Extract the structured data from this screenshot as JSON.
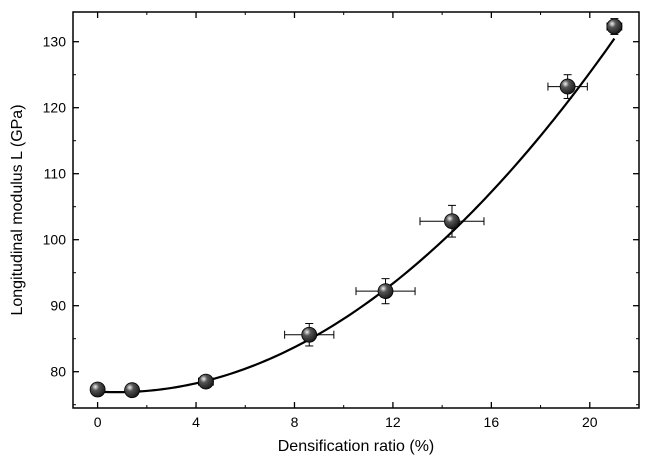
{
  "chart_data": {
    "type": "scatter",
    "xlabel": "Densification ratio (%)",
    "ylabel": "Longitudinal modulus L (GPa)",
    "xlim": [
      -1,
      22
    ],
    "ylim": [
      74.5,
      134.5
    ],
    "x_ticks": [
      0,
      4,
      8,
      12,
      16,
      20
    ],
    "y_ticks": [
      80,
      90,
      100,
      110,
      120,
      130
    ],
    "grid": false,
    "legend": "none",
    "colors": {
      "marker": "#1a1a1a",
      "line": "#000000",
      "axis": "#000000"
    },
    "points": [
      {
        "x": 0.0,
        "y": 77.3,
        "xerr": 0.0,
        "yerr": 0.5
      },
      {
        "x": 1.4,
        "y": 77.2,
        "xerr": 0.0,
        "yerr": 0.5
      },
      {
        "x": 4.4,
        "y": 78.5,
        "xerr": 0.3,
        "yerr": 0.9
      },
      {
        "x": 8.6,
        "y": 85.6,
        "xerr": 1.0,
        "yerr": 1.7
      },
      {
        "x": 11.7,
        "y": 92.2,
        "xerr": 1.2,
        "yerr": 1.9
      },
      {
        "x": 14.4,
        "y": 102.8,
        "xerr": 1.3,
        "yerr": 2.4
      },
      {
        "x": 19.1,
        "y": 123.2,
        "xerr": 0.8,
        "yerr": 1.8
      },
      {
        "x": 21.0,
        "y": 132.3,
        "xerr": 0.3,
        "yerr": 1.2
      }
    ],
    "fit_curve": {
      "type": "quadratic",
      "x_range": [
        0,
        21
      ],
      "min_x": 0.8,
      "min_y": 76.9,
      "curvature": 0.1313
    }
  }
}
